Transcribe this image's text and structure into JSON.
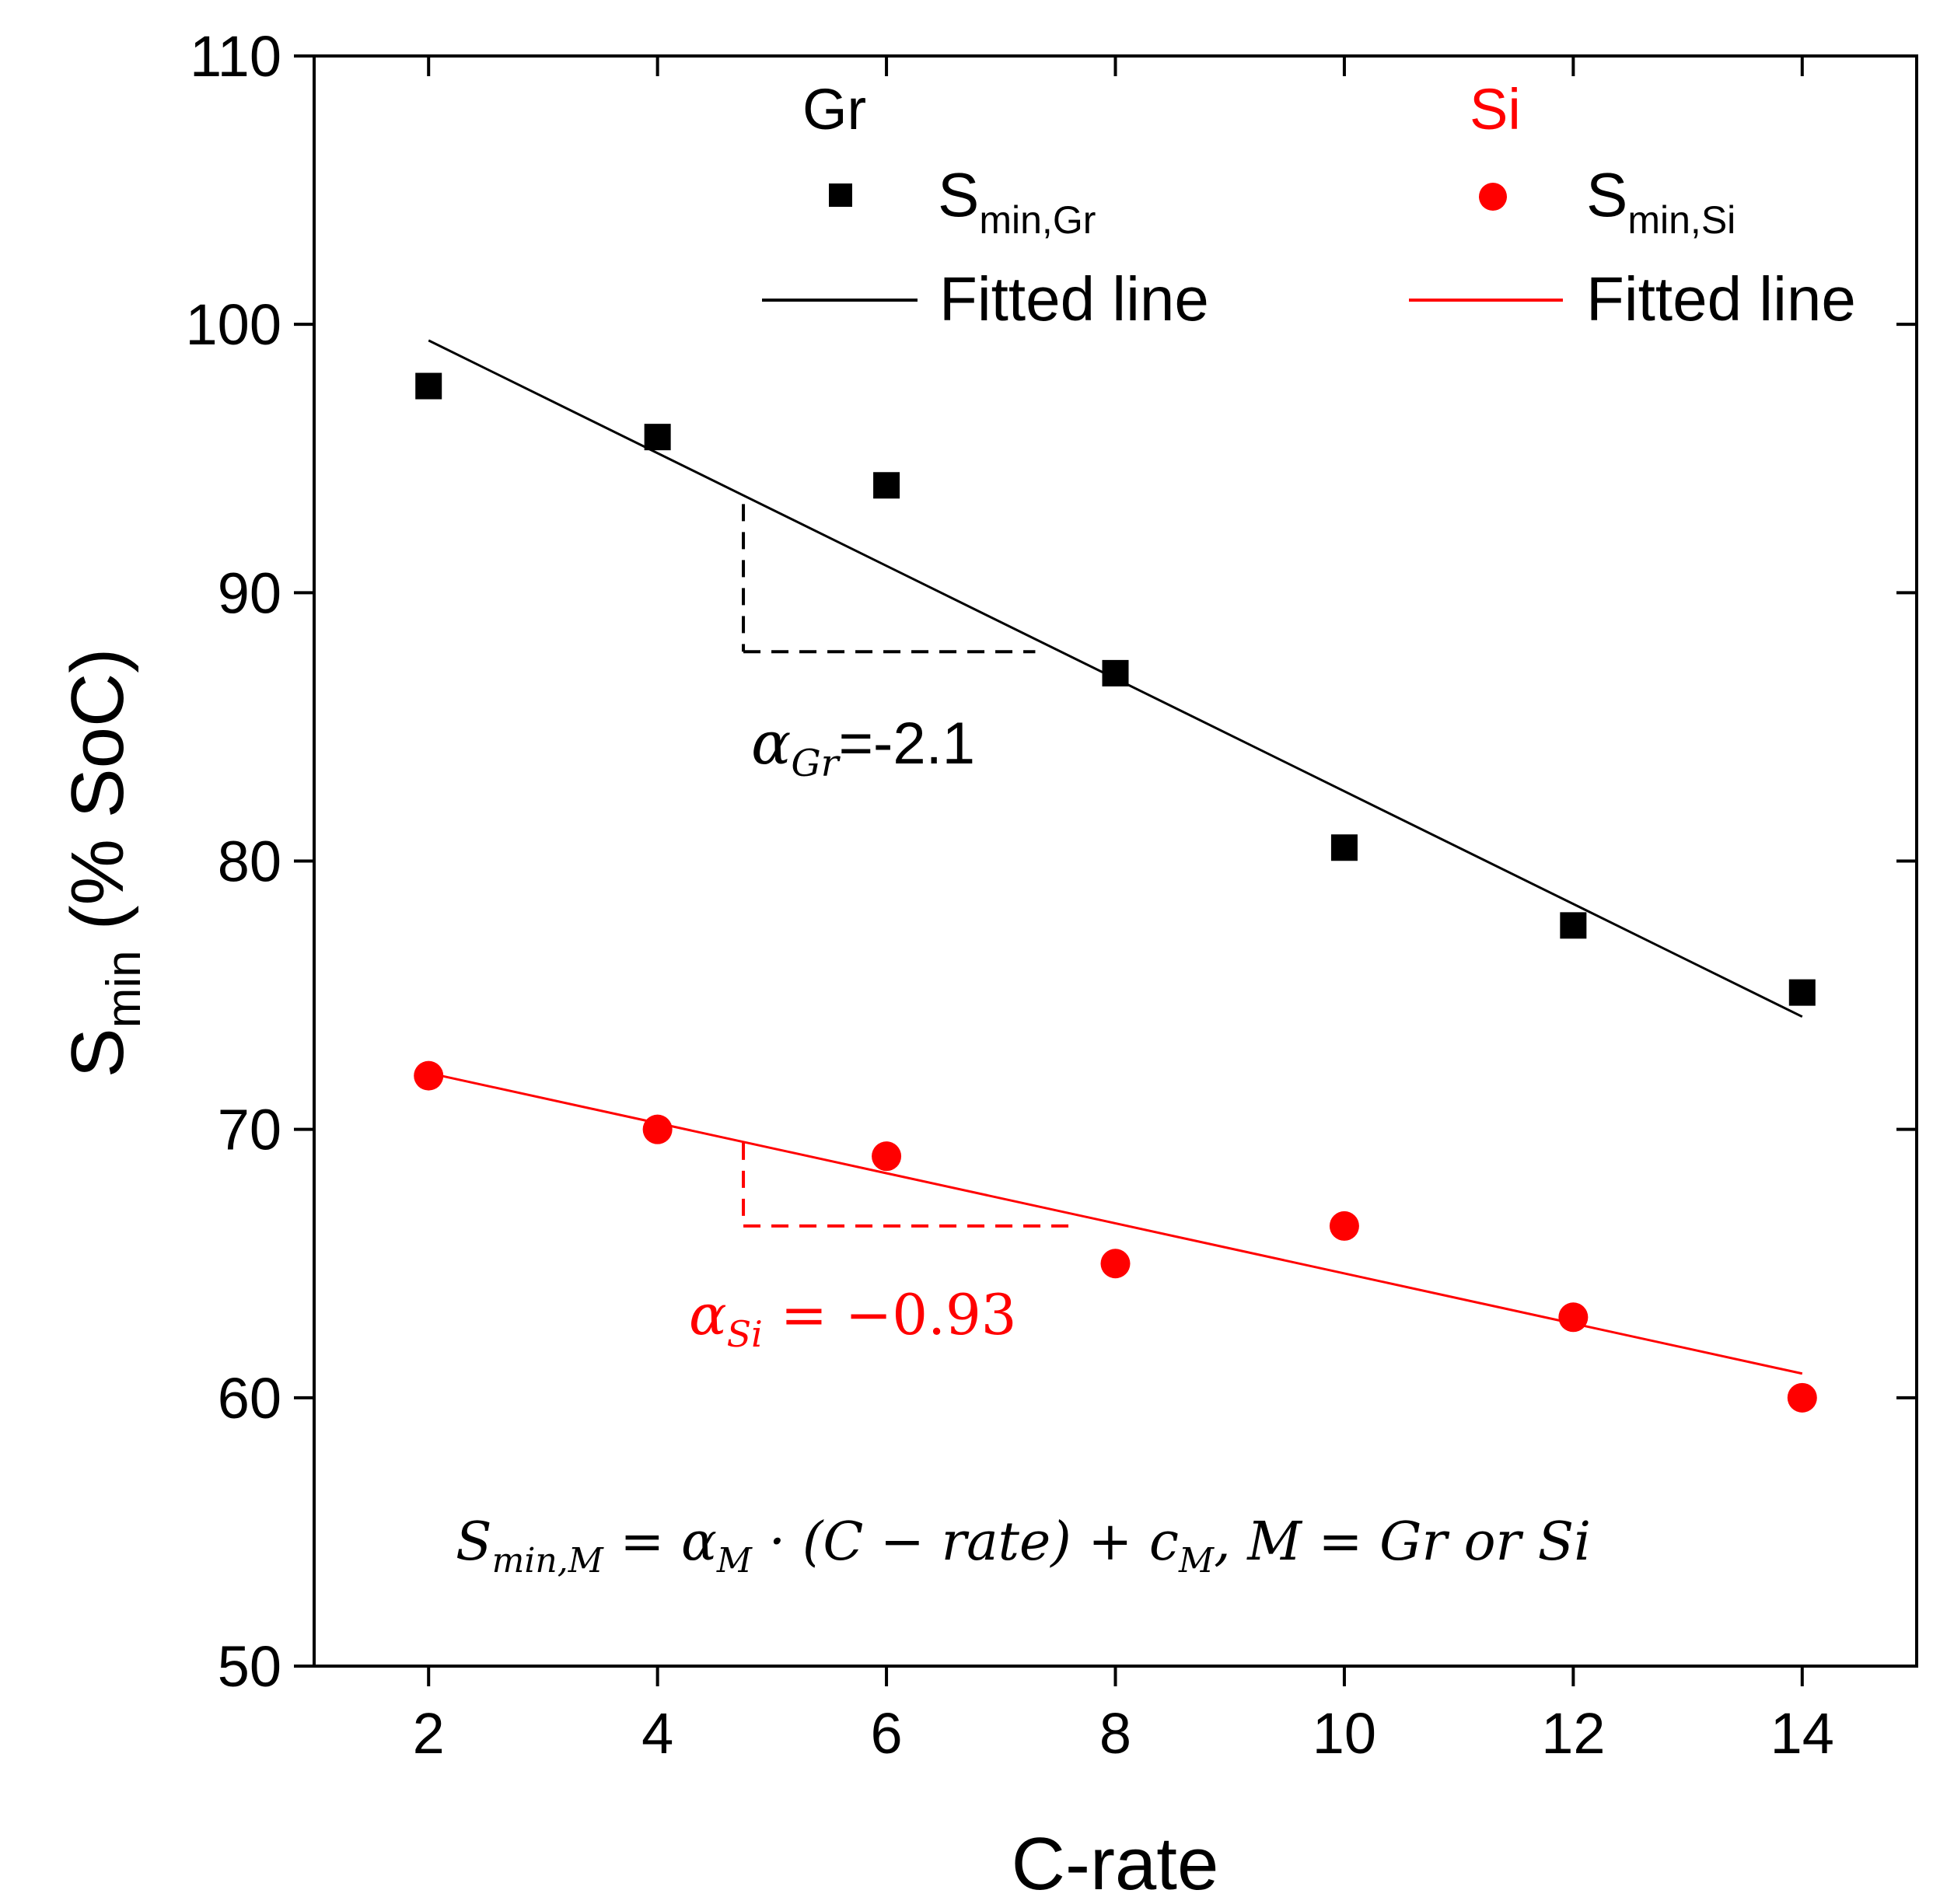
{
  "colors": {
    "gr": "#000000",
    "si": "#ff0000",
    "axis": "#000000",
    "background": "#ffffff"
  },
  "chart_data": {
    "type": "scatter",
    "title": "",
    "xlabel": "C-rate",
    "ylabel_main": "S",
    "ylabel_sub": "min",
    "ylabel_unit": "(% SoC)",
    "xlim": [
      1,
      15
    ],
    "ylim": [
      50,
      110
    ],
    "xticks": [
      2,
      4,
      6,
      8,
      10,
      12,
      14
    ],
    "yticks": [
      50,
      60,
      70,
      80,
      90,
      100,
      110
    ],
    "grid": false,
    "legend_position": "top",
    "legend": {
      "gr_header": "Gr",
      "si_header": "Si",
      "gr_points_main": "S",
      "gr_points_sub": "min,Gr",
      "si_points_main": "S",
      "si_points_sub": "min,Si",
      "gr_line": "Fitted line",
      "si_line": "Fitted line"
    },
    "series": [
      {
        "name": "S_min,Gr",
        "marker": "square",
        "color": "#000000",
        "x": [
          2,
          4,
          6,
          8,
          10,
          12,
          14
        ],
        "y": [
          97.7,
          95.8,
          94.0,
          87.0,
          80.5,
          77.6,
          75.1
        ],
        "fit": {
          "x0": 2,
          "y0": 99.4,
          "x1": 14,
          "y1": 74.2
        }
      },
      {
        "name": "S_min,Si",
        "marker": "circle",
        "color": "#ff0000",
        "x": [
          2,
          4,
          6,
          8,
          10,
          12,
          14
        ],
        "y": [
          72.0,
          70.0,
          69.0,
          65.0,
          66.4,
          63.0,
          60.0
        ],
        "fit": {
          "x0": 2,
          "y0": 72.1,
          "x1": 14,
          "y1": 60.9
        }
      }
    ],
    "annotations": {
      "gr_slope_triangle": {
        "x_from": 4.75,
        "x_to": 7.3,
        "y_top": 93.3,
        "y_bottom": 87.8
      },
      "si_slope_triangle": {
        "x_from": 4.75,
        "x_to": 7.65,
        "y_top": 69.5,
        "y_bottom": 66.4
      },
      "gr_slope_label": {
        "alpha": "α",
        "sub": "Gr",
        "value": "=-2.1"
      },
      "si_slope_label": {
        "alpha": "α",
        "sub": "Si",
        "value": " = −0.93"
      },
      "equation": "S<sub>min,M</sub> =  α<sub>M</sub> · (C − rate) + c<sub>M</sub>, M = Gr or Si",
      "equation_parts": {
        "s": "S",
        "s_sub": "min,M",
        "eq1": " =  α",
        "alpha_sub": "M",
        "mid": " · (C − rate) + c",
        "c_sub": "M",
        "tail": ", M = Gr or Si"
      }
    }
  }
}
